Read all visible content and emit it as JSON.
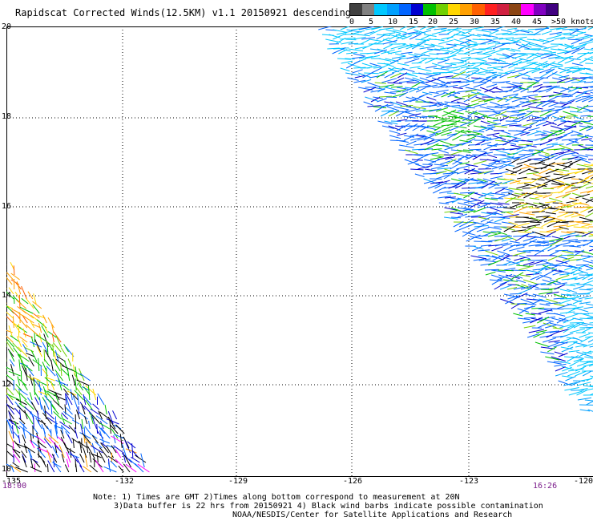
{
  "title": "Rapidscat Corrected Winds(12.5KM) v1.1 20150921 descending",
  "legend": {
    "colors": [
      "#404040",
      "#808080",
      "#00c8ff",
      "#00a0ff",
      "#0064ff",
      "#0000d0",
      "#00c000",
      "#70d000",
      "#ffd700",
      "#ffa000",
      "#ff6000",
      "#ff2020",
      "#d02040",
      "#8b4513",
      "#ff00ff",
      "#8000c0",
      "#400080"
    ],
    "labels": [
      "0",
      "5",
      "10",
      "15",
      "20",
      "25",
      "30",
      "35",
      "40",
      "45",
      ">50 knots"
    ]
  },
  "axes": {
    "lat_labels": [
      "20",
      "18",
      "16",
      "14",
      "12",
      "10"
    ],
    "lon_labels": [
      "-135",
      "-132",
      "-129",
      "-126",
      "-123",
      "-120"
    ]
  },
  "times": {
    "left": "18:00",
    "right": "16:26"
  },
  "notes": {
    "line1": "Note: 1) Times are GMT 2)Times along bottom correspond to measurement at 20N",
    "line2": "3)Data buffer is 22 hrs from 20150921 4) Black wind barbs indicate possible contamination",
    "line3": "NOAA/NESDIS/Center for Satellite Applications and Research"
  }
}
